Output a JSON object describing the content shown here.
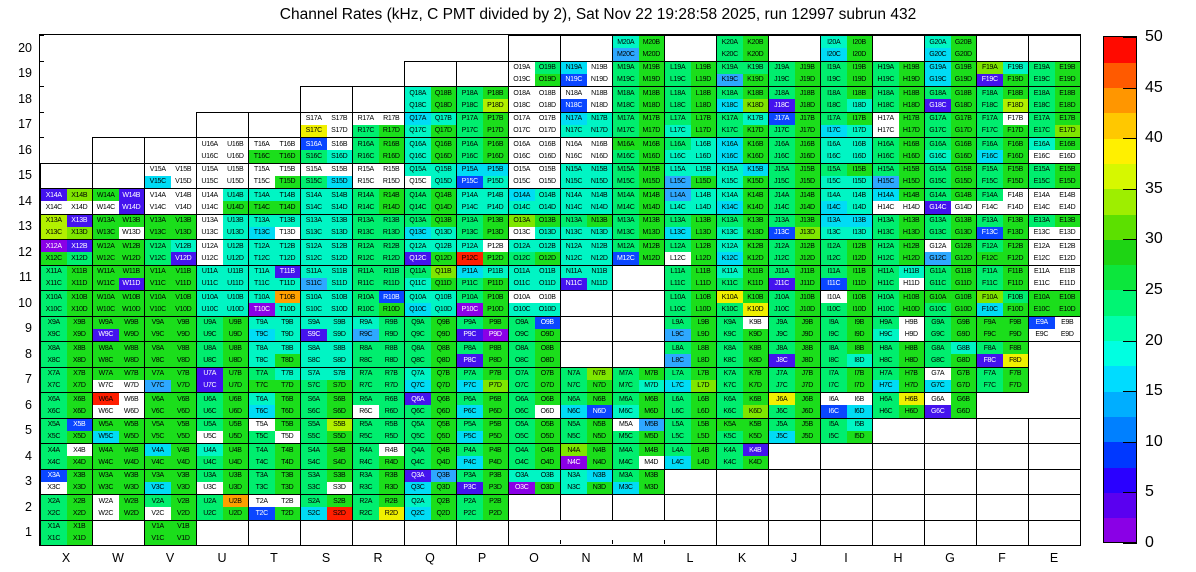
{
  "chart_data": {
    "type": "heatmap",
    "title": "Channel Rates (kHz, C PMT divided by 2), Sat Nov 22 19:28:58 2025, run 12997 subrun 432",
    "x_letters": [
      "X",
      "W",
      "V",
      "U",
      "T",
      "S",
      "R",
      "Q",
      "P",
      "O",
      "N",
      "M",
      "L",
      "K",
      "J",
      "I",
      "H",
      "G",
      "F",
      "E"
    ],
    "y_rows": [
      20,
      19,
      18,
      17,
      16,
      15,
      14,
      13,
      12,
      11,
      10,
      9,
      8,
      7,
      6,
      5,
      4,
      3,
      2,
      1
    ],
    "subcells": [
      "A",
      "B",
      "C",
      "D"
    ],
    "label_pattern": "{column}{row}{subcell}",
    "colorbar": {
      "min": 0,
      "max": 50,
      "tick_step": 5,
      "ticks": [
        0,
        5,
        10,
        15,
        20,
        25,
        30,
        35,
        40,
        45,
        50
      ],
      "band_colors_bottom_to_top": [
        "#8A00E6",
        "#5A00F0",
        "#2A00FF",
        "#0038FF",
        "#0080FF",
        "#00AEFF",
        "#00DCFF",
        "#00FFE1",
        "#00FFAA",
        "#00F573",
        "#0CE63C",
        "#1ED414",
        "#5CE000",
        "#9EEE00",
        "#D6F800",
        "#FFF000",
        "#FFC800",
        "#FF9600",
        "#FF5A00",
        "#FF0A00"
      ]
    },
    "palette": {
      "v": "#8A00E6",
      "i": "#4413EE",
      "b": "#0A46FF",
      "s": "#2EA8FF",
      "c": "#00DCF5",
      "t": "#00F5C4",
      "g": "#00EE6E",
      "G": "#1BDE1B",
      "y": "#7FE600",
      "l": "#B2F000",
      "Y": "#F0F000",
      "o": "#FFA000",
      "r": "#FF1E00",
      "w": "#FFFFFF"
    },
    "white_text_codes": [
      "v",
      "i",
      "b"
    ],
    "approx_value_kHz_by_code": {
      "w": 0,
      "v": 1,
      "i": 4,
      "b": 8,
      "s": 13,
      "c": 16,
      "t": 19,
      "g": 23,
      "G": 27,
      "y": 31,
      "l": 34,
      "Y": 37,
      "o": 41,
      "r": 48
    },
    "rows": [
      {
        "row": 20,
        "boxes": [
          "O",
          "N",
          "L",
          "J",
          "H",
          "F",
          "E"
        ],
        "cells": {
          "M": "tGsG",
          "K": "gGgG",
          "I": "tGcG",
          "G": "tGcG"
        }
      },
      {
        "row": 19,
        "boxes": [
          "Q",
          "P"
        ],
        "cells": {
          "O": "wgwG",
          "N": "cwbw",
          "M": "gGgG",
          "L": "gGgG",
          "K": "ggsG",
          "J": "gGgG",
          "I": "gGgG",
          "H": "gGgG",
          "G": "cGcG",
          "F": "ytiG",
          "E": "gGgG"
        }
      },
      {
        "row": 18,
        "boxes": [
          "S",
          "R"
        ],
        "cells": {
          "Q": "tGtG",
          "P": "gGgl",
          "O": "wwww",
          "N": "wwbw",
          "M": "gGgG",
          "L": "gGgG",
          "K": "gGcy",
          "J": "gGiG",
          "I": "gGgt",
          "H": "gGgG",
          "G": "gGiG",
          "F": "gGgl",
          "E": "gGgG"
        }
      },
      {
        "row": 17,
        "boxes": [
          "U",
          "T"
        ],
        "cells": {
          "S": "wwYw",
          "R": "wwgG",
          "Q": "cttG",
          "P": "gGgG",
          "O": "wwww",
          "N": "cttt",
          "M": "gGgG",
          "L": "gGtG",
          "K": "gtgG",
          "J": "bGgG",
          "I": "gGct",
          "H": "wGwG",
          "G": "gGgG",
          "F": "gwgG",
          "E": "gGgy"
        }
      },
      {
        "row": 16,
        "boxes": [
          "W",
          "V"
        ],
        "cells": {
          "U": "wwww",
          "T": "wwGG",
          "S": "bwgt",
          "R": "gGgG",
          "Q": "tGtG",
          "P": "gGgG",
          "O": "wwww",
          "N": "wwww",
          "M": "GGgG",
          "L": "gttt",
          "K": "cGcG",
          "J": "gGgG",
          "I": "tttt",
          "H": "gGgG",
          "G": "gGtG",
          "F": "gGcG",
          "E": "tGww"
        }
      },
      {
        "row": 15,
        "boxes": [
          "X",
          "W"
        ],
        "cells": {
          "V": "wwcw",
          "U": "wwww",
          "T": "wwwG",
          "S": "wwgc",
          "R": "wwww",
          "Q": "ttwt",
          "P": "ccbt",
          "O": "wwww",
          "N": "tttt",
          "M": "gGgG",
          "L": "ttsG",
          "K": "tctG",
          "J": "gGgG",
          "I": "gGtt",
          "H": "gGsG",
          "G": "gGgG",
          "F": "gGgG",
          "E": "gGgG"
        }
      },
      {
        "row": 14,
        "cells": {
          "X": "iyww",
          "W": "Giwi",
          "V": "wwww",
          "U": "wtwG",
          "T": "ttGG",
          "S": "tttt",
          "R": "gGgG",
          "Q": "gGgG",
          "P": "tttt",
          "O": "cttt",
          "N": "tttt",
          "M": "gGgG",
          "L": "sttt",
          "K": "tGcG",
          "J": "gGgG",
          "I": "ttct",
          "H": "cGww",
          "G": "gGiw",
          "F": "gwww",
          "E": "wwww"
        }
      },
      {
        "row": 13,
        "cells": {
          "X": "lily",
          "W": "GGGw",
          "V": "GGGG",
          "U": "wtwt",
          "T": "ttcw",
          "S": "tttt",
          "R": "gggg",
          "Q": "gGct",
          "P": "gGgG",
          "O": "yGwt",
          "N": "gGtt",
          "M": "gGgG",
          "L": "gGcG",
          "K": "gGtG",
          "J": "gGby",
          "I": "cctt",
          "H": "gGgG",
          "G": "gGgG",
          "F": "gGbG",
          "E": "gGww"
        }
      },
      {
        "row": 12,
        "cells": {
          "X": "viGg",
          "W": "GGGG",
          "V": "gtgi",
          "U": "wtwt",
          "T": "tttt",
          "S": "tttt",
          "R": "gggg",
          "Q": "ttiG",
          "P": "twrG",
          "O": "ttgG",
          "N": "tttt",
          "M": "gGbG",
          "L": "gGwG",
          "K": "tGcG",
          "J": "gGgG",
          "I": "gGgG",
          "H": "gGgG",
          "G": "wGsG",
          "F": "gGGG",
          "E": "wwww"
        }
      },
      {
        "row": 11,
        "boxes": [
          "M"
        ],
        "cells": {
          "X": "gGgG",
          "W": "GGGi",
          "V": "GGGG",
          "U": "tttt",
          "T": "titt",
          "S": "ttst",
          "R": "gggg",
          "Q": "gytG",
          "P": "ctgG",
          "O": "tttt",
          "N": "ttit",
          "L": "gGgG",
          "K": "tGgG",
          "J": "gGiG",
          "I": "gGbG",
          "H": "gtgw",
          "G": "gGgG",
          "F": "gGgG",
          "E": "wwww"
        }
      },
      {
        "row": 10,
        "boxes": [
          "N",
          "M"
        ],
        "cells": {
          "X": "gGgG",
          "W": "GGGG",
          "V": "GGGG",
          "U": "tttt",
          "T": "tovt",
          "S": "tttt",
          "R": "gbgG",
          "Q": "ttct",
          "P": "gGvG",
          "O": "wwtt",
          "L": "gGgG",
          "K": "YGgY",
          "J": "gGgG",
          "I": "wGgG",
          "H": "gGgG",
          "G": "GGgG",
          "F": "ygcG",
          "E": "GGGG"
        }
      },
      {
        "row": 9,
        "boxes": [
          "N",
          "M"
        ],
        "cells": {
          "X": "gGgG",
          "W": "GGiG",
          "V": "GGGG",
          "U": "gGgG",
          "T": "ttct",
          "S": "ttit",
          "R": "tgsg",
          "Q": "gGgG",
          "P": "gGiv",
          "O": "gbgG",
          "L": "gGsG",
          "K": "gwgG",
          "J": "gGgG",
          "I": "gGgG",
          "H": "gwtw",
          "G": "gGgG",
          "F": "GGGG",
          "E": "bwww"
        }
      },
      {
        "row": 8,
        "boxes": [
          "N",
          "M"
        ],
        "cells": {
          "X": "gGgG",
          "W": "GGGG",
          "V": "GGGG",
          "U": "gGgG",
          "T": "tttG",
          "S": "tttt",
          "R": "gggg",
          "Q": "gGgG",
          "P": "gGiG",
          "O": "gGgG",
          "L": "gGsG",
          "K": "gGgG",
          "J": "gGiG",
          "I": "gGgt",
          "H": "gGgG",
          "G": "gtgG",
          "F": "gGiY"
        }
      },
      {
        "row": 7,
        "cells": {
          "X": "gGgG",
          "W": "GGww",
          "V": "GGsG",
          "U": "iGiG",
          "T": "gtGG",
          "S": "ttgG",
          "R": "gggg",
          "Q": "tGcG",
          "P": "gGcy",
          "O": "gGgG",
          "N": "gygG",
          "M": "gGgt",
          "L": "gGcy",
          "K": "gGgG",
          "J": "gGgG",
          "I": "gGgG",
          "H": "gGcG",
          "G": "wGcG",
          "F": "gGgG"
        }
      },
      {
        "row": 6,
        "cells": {
          "X": "gGgG",
          "W": "rwww",
          "V": "GGGG",
          "U": "gGgG",
          "T": "tGcG",
          "S": "gGgG",
          "R": "ggwg",
          "Q": "iGgG",
          "P": "gGcG",
          "O": "gGgw",
          "N": "gGcb",
          "M": "gGtG",
          "L": "gGgG",
          "K": "gGgy",
          "J": "YGgG",
          "I": "wwbc",
          "H": "gYgG",
          "G": "wGiG"
        }
      },
      {
        "row": 5,
        "boxes": [
          "H",
          "G",
          "F",
          "E"
        ],
        "cells": {
          "X": "gbgG",
          "W": "GGcG",
          "V": "GGGG",
          "U": "gGwG",
          "T": "wGgw",
          "S": "glgG",
          "R": "gggg",
          "Q": "gGgG",
          "P": "gGcG",
          "O": "gGgG",
          "N": "gGgG",
          "M": "wsgG",
          "L": "gGgG",
          "K": "GGgG",
          "J": "gGcG",
          "I": "gtgG"
        }
      },
      {
        "row": 4,
        "boxes": [
          "J",
          "I",
          "H",
          "G",
          "F",
          "E"
        ],
        "cells": {
          "X": "gwgG",
          "W": "GGGG",
          "V": "cGGG",
          "U": "tGgG",
          "T": "gGgG",
          "S": "gGgG",
          "R": "gwgG",
          "Q": "gGgG",
          "P": "gGcG",
          "O": "gGgG",
          "N": "yGvG",
          "M": "gGgw",
          "L": "gGcG",
          "K": "gigG"
        }
      },
      {
        "row": 3,
        "boxes": [
          "L",
          "K",
          "J",
          "I",
          "H",
          "G",
          "F",
          "E"
        ],
        "cells": {
          "X": "bGwG",
          "W": "GGGG",
          "V": "GGcG",
          "U": "gGwG",
          "T": "gGgG",
          "S": "gGgw",
          "R": "gGgG",
          "Q": "iscG",
          "P": "gGiG",
          "O": "ttvG",
          "N": "tctG",
          "M": "gGcG"
        }
      },
      {
        "row": 2,
        "boxes": [
          "O",
          "N",
          "M",
          "L",
          "K",
          "J",
          "I",
          "H",
          "G",
          "F",
          "E"
        ],
        "cells": {
          "X": "gGgG",
          "W": "wGwG",
          "V": "gGwG",
          "U": "gogG",
          "T": "wwbG",
          "S": "gGcr",
          "R": "gGgY",
          "Q": "tGcG",
          "P": "gGgG"
        }
      },
      {
        "row": 1,
        "boxes": [
          "W",
          "U",
          "T",
          "S",
          "R",
          "Q",
          "P",
          "K",
          "J",
          "I",
          "H",
          "G",
          "F",
          "E"
        ],
        "cells": {
          "X": "gGgG",
          "V": "GGGG"
        }
      }
    ]
  }
}
